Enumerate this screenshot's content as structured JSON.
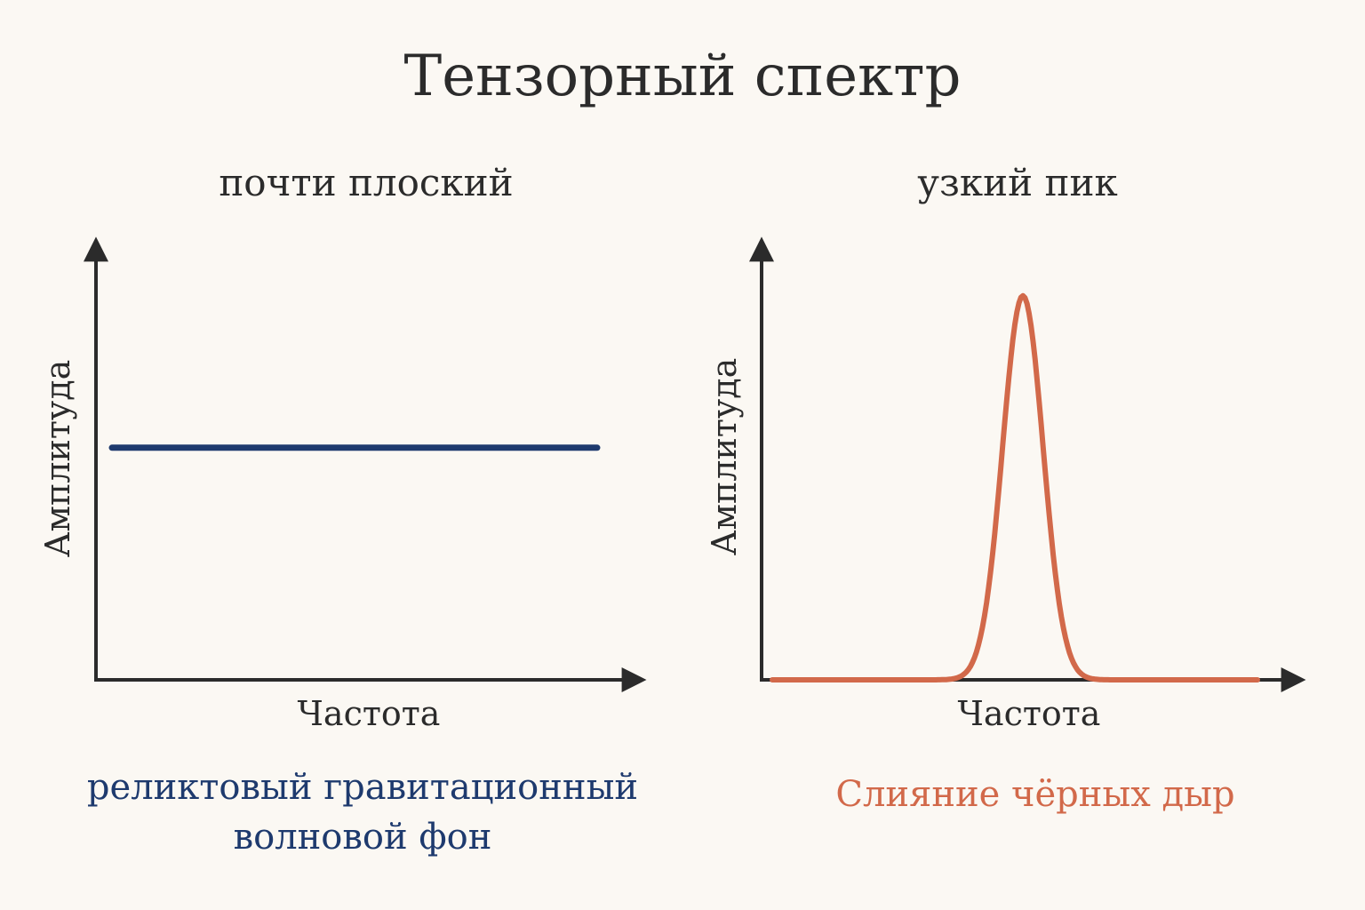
{
  "title": "Тензорный спектр",
  "colors": {
    "background": "#fbf8f3",
    "axis": "#2b2b2b",
    "flat_series": "#1e3a6e",
    "peak_series": "#d2694a"
  },
  "chart_data": [
    {
      "type": "line",
      "title": "почти плоский",
      "xlabel": "Частота",
      "ylabel": "Амплитуда",
      "xlim": [
        0,
        1
      ],
      "ylim": [
        0,
        1
      ],
      "series": [
        {
          "name": "реликтовый гравитационный волновой фон",
          "x": [
            0.03,
            0.94
          ],
          "y": [
            0.55,
            0.55
          ]
        }
      ],
      "caption": [
        "реликтовый гравитационный",
        "волновой фон"
      ]
    },
    {
      "type": "line",
      "title": "узкий пик",
      "xlabel": "Частота",
      "ylabel": "Амплитуда",
      "xlim": [
        0,
        1
      ],
      "ylim": [
        0,
        1
      ],
      "series": [
        {
          "name": "Слияние чёрных дыр",
          "shape": "gaussian",
          "x_range": [
            0.02,
            0.93
          ],
          "peak_x": 0.49,
          "peak_y": 0.91,
          "width": 0.038
        }
      ],
      "caption": [
        "Слияние чёрных дыр"
      ]
    }
  ]
}
